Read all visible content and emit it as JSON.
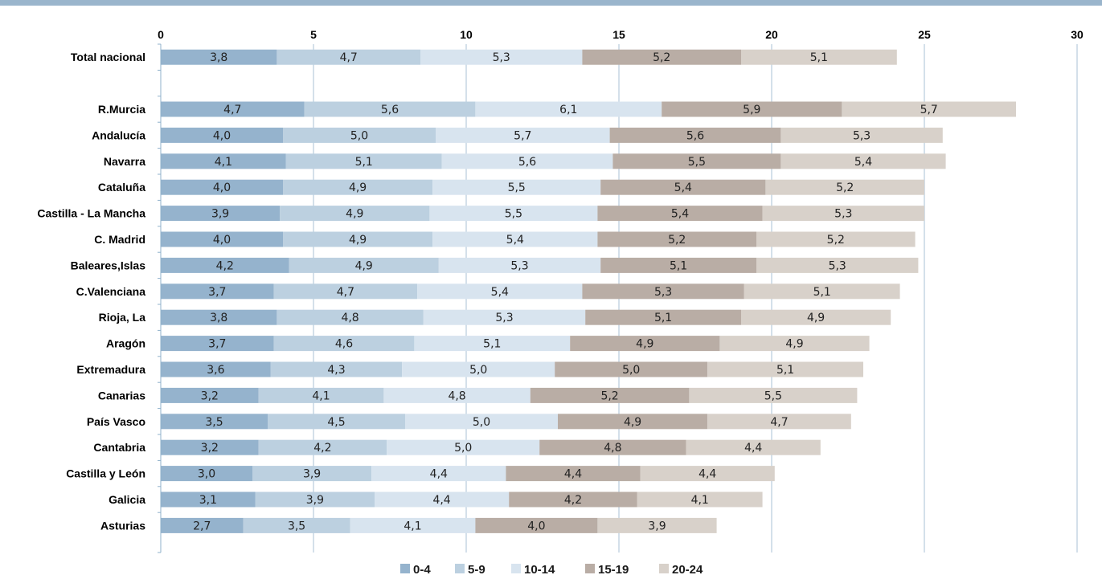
{
  "chart_data": {
    "type": "bar",
    "orientation": "horizontal",
    "stacked": true,
    "xlim": [
      0,
      30
    ],
    "x_ticks": [
      "0",
      "5",
      "10",
      "15",
      "20",
      "25",
      "30"
    ],
    "grid": "vertical",
    "legend_position": "bottom",
    "categories": [
      "Total nacional",
      "",
      "R.Murcia",
      "Andalucía",
      "Navarra",
      "Cataluña",
      "Castilla - La Mancha",
      "C. Madrid",
      "Baleares,Islas",
      "C.Valenciana",
      "Rioja, La",
      "Aragón",
      "Extremadura",
      "Canarias",
      "País Vasco",
      "Cantabria",
      "Castilla y León",
      "Galicia",
      "Asturias"
    ],
    "series": [
      {
        "name": "0-4",
        "color": "#95b3cd",
        "values": [
          3.8,
          null,
          4.7,
          4.0,
          4.1,
          4.0,
          3.9,
          4.0,
          4.2,
          3.7,
          3.8,
          3.7,
          3.6,
          3.2,
          3.5,
          3.2,
          3.0,
          3.1,
          2.7
        ],
        "labels": [
          "3,8",
          "",
          "4,7",
          "4,0",
          "4,1",
          "4,0",
          "3,9",
          "4,0",
          "4,2",
          "3,7",
          "3,8",
          "3,7",
          "3,6",
          "3,2",
          "3,5",
          "3,2",
          "3,0",
          "3,1",
          "2,7"
        ]
      },
      {
        "name": "5-9",
        "color": "#bcd0e0",
        "values": [
          4.7,
          null,
          5.6,
          5.0,
          5.1,
          4.9,
          4.9,
          4.9,
          4.9,
          4.7,
          4.8,
          4.6,
          4.3,
          4.1,
          4.5,
          4.2,
          3.9,
          3.9,
          3.5
        ],
        "labels": [
          "4,7",
          "",
          "5,6",
          "5,0",
          "5,1",
          "4,9",
          "4,9",
          "4,9",
          "4,9",
          "4,7",
          "4,8",
          "4,6",
          "4,3",
          "4,1",
          "4,5",
          "4,2",
          "3,9",
          "3,9",
          "3,5"
        ]
      },
      {
        "name": "10-14",
        "color": "#d8e4ef",
        "values": [
          5.3,
          null,
          6.1,
          5.7,
          5.6,
          5.5,
          5.5,
          5.4,
          5.3,
          5.4,
          5.3,
          5.1,
          5.0,
          4.8,
          5.0,
          5.0,
          4.4,
          4.4,
          4.1
        ],
        "labels": [
          "5,3",
          "",
          "6,1",
          "5,7",
          "5,6",
          "5,5",
          "5,5",
          "5,4",
          "5,3",
          "5,4",
          "5,3",
          "5,1",
          "5,0",
          "4,8",
          "5,0",
          "5,0",
          "4,4",
          "4,4",
          "4,1"
        ]
      },
      {
        "name": "15-19",
        "color": "#b9ada5",
        "values": [
          5.2,
          null,
          5.9,
          5.6,
          5.5,
          5.4,
          5.4,
          5.2,
          5.1,
          5.3,
          5.1,
          4.9,
          5.0,
          5.2,
          4.9,
          4.8,
          4.4,
          4.2,
          4.0
        ],
        "labels": [
          "5,2",
          "",
          "5,9",
          "5,6",
          "5,5",
          "5,4",
          "5,4",
          "5,2",
          "5,1",
          "5,3",
          "5,1",
          "4,9",
          "5,0",
          "5,2",
          "4,9",
          "4,8",
          "4,4",
          "4,2",
          "4,0"
        ]
      },
      {
        "name": "20-24",
        "color": "#d8d1ca",
        "values": [
          5.1,
          null,
          5.7,
          5.3,
          5.4,
          5.2,
          5.3,
          5.2,
          5.3,
          5.1,
          4.9,
          4.9,
          5.1,
          5.5,
          4.7,
          4.4,
          4.4,
          4.1,
          3.9
        ],
        "labels": [
          "5,1",
          "",
          "5,7",
          "5,3",
          "5,4",
          "5,2",
          "5,3",
          "5,2",
          "5,3",
          "5,1",
          "4,9",
          "4,9",
          "5,1",
          "5,5",
          "4,7",
          "4,4",
          "4,4",
          "4,1",
          "3,9"
        ]
      }
    ]
  }
}
